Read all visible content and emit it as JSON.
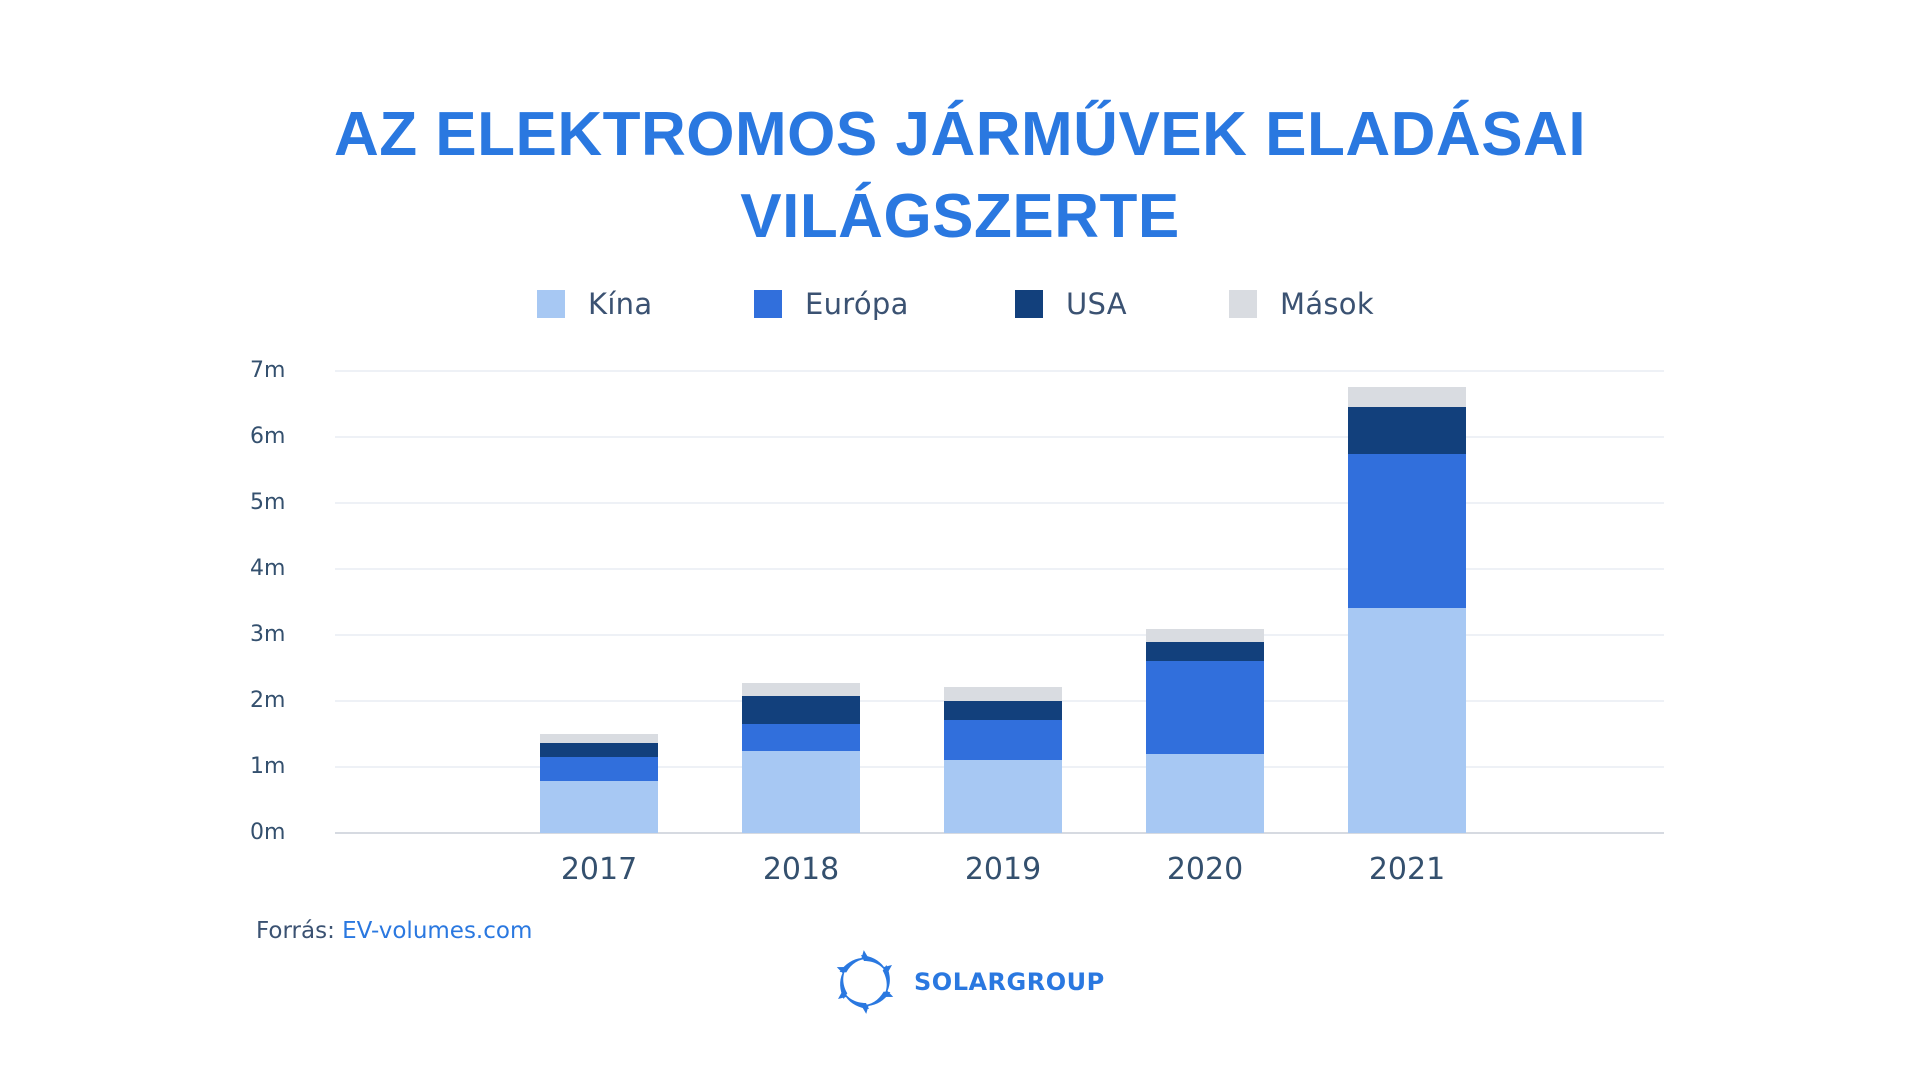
{
  "title": {
    "line1": "AZ ELEKTROMOS JÁRMŰVEK ELADÁSAI",
    "line2": "VILÁGSZERTE"
  },
  "legend": [
    {
      "label": "Kína",
      "color": "#a7c8f3"
    },
    {
      "label": "Európa",
      "color": "#316fdc"
    },
    {
      "label": "USA",
      "color": "#12407c"
    },
    {
      "label": "Mások",
      "color": "#d9dce1"
    }
  ],
  "y_axis": {
    "ticks": [
      "0m",
      "1m",
      "2m",
      "3m",
      "4m",
      "5m",
      "6m",
      "7m"
    ]
  },
  "x_axis": {
    "ticks": [
      "2017",
      "2018",
      "2019",
      "2020",
      "2021"
    ]
  },
  "source": {
    "label": "Forrás:",
    "link_text": "EV-volumes.com"
  },
  "brand": {
    "name": "SOLARGROUP",
    "color": "#2a78e0"
  },
  "chart_data": {
    "type": "bar",
    "stacked": true,
    "title": "AZ ELEKTROMOS JÁRMŰVEK ELADÁSAI VILÁGSZERTE",
    "xlabel": "",
    "ylabel": "",
    "categories": [
      "2017",
      "2018",
      "2019",
      "2020",
      "2021"
    ],
    "series": [
      {
        "name": "Kína",
        "color": "#a7c8f3",
        "values": [
          0.79,
          1.24,
          1.11,
          1.2,
          3.41
        ]
      },
      {
        "name": "Európa",
        "color": "#316fdc",
        "values": [
          0.36,
          0.41,
          0.61,
          1.41,
          2.33
        ]
      },
      {
        "name": "USA",
        "color": "#12407c",
        "values": [
          0.21,
          0.42,
          0.29,
          0.29,
          0.71
        ]
      },
      {
        "name": "Mások",
        "color": "#d9dce1",
        "values": [
          0.14,
          0.2,
          0.21,
          0.2,
          0.3
        ]
      }
    ],
    "totals": [
      1.5,
      2.27,
      2.22,
      3.1,
      6.75
    ],
    "unit": "millió jármű (m)",
    "ylim": [
      0,
      7
    ],
    "yticks": [
      "0m",
      "1m",
      "2m",
      "3m",
      "4m",
      "5m",
      "6m",
      "7m"
    ],
    "grid": true,
    "legend_position": "top",
    "source": "Forrás: EV-volumes.com"
  }
}
